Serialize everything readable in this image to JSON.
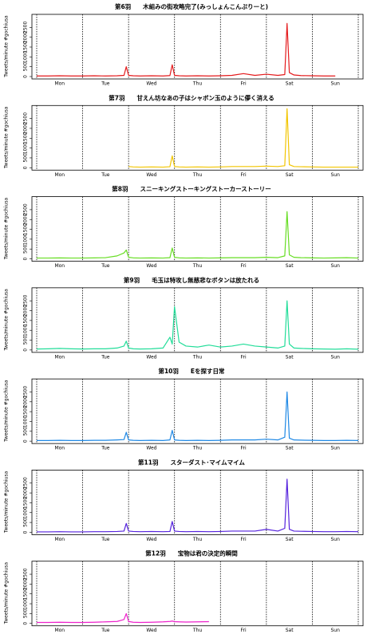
{
  "chart_data": [
    {
      "type": "line",
      "title": "第6羽　　木組みの街攻略完了(みっしょんこんぷりーと)",
      "y_label": "Tweets/minute #gochiusa",
      "categories": [
        "Mon",
        "Tue",
        "Wed",
        "Thu",
        "Fri",
        "Sat",
        "Sun"
      ],
      "xlim": [
        0,
        7
      ],
      "ylim": [
        0,
        3000
      ],
      "yticks": [
        0,
        500,
        1000,
        1500,
        2000,
        2500
      ],
      "series": [
        {
          "color": "#e41a1c",
          "x": [
            0,
            0.25,
            0.5,
            0.75,
            1,
            1.25,
            1.5,
            1.75,
            1.9,
            1.95,
            2,
            2.1,
            2.25,
            2.5,
            2.75,
            2.9,
            2.95,
            3,
            3.1,
            3.25,
            3.5,
            3.75,
            4,
            4.25,
            4.5,
            4.75,
            5,
            5.25,
            5.4,
            5.45,
            5.5,
            5.6,
            5.75,
            6,
            6.25,
            6.5,
            6.75,
            7
          ],
          "values": [
            30,
            30,
            40,
            30,
            30,
            40,
            30,
            40,
            60,
            500,
            60,
            40,
            30,
            40,
            30,
            50,
            600,
            60,
            40,
            30,
            40,
            30,
            40,
            60,
            150,
            60,
            120,
            60,
            100,
            2700,
            200,
            80,
            50,
            40,
            30,
            30,
            null,
            null
          ]
        }
      ]
    },
    {
      "type": "line",
      "title": "第7羽　　甘えん坊なあの子はシャボン玉のように儚く消える",
      "y_label": "Tweets/minute #gochiusa",
      "categories": [
        "Mon",
        "Tue",
        "Wed",
        "Thu",
        "Fri",
        "Sat",
        "Sun"
      ],
      "xlim": [
        0,
        7
      ],
      "ylim": [
        0,
        3000
      ],
      "yticks": [
        0,
        500,
        1000,
        1500,
        2000,
        2500
      ],
      "series": [
        {
          "color": "#f2c500",
          "x": [
            0,
            0.25,
            0.5,
            0.75,
            1,
            1.25,
            1.5,
            1.75,
            1.9,
            1.95,
            2,
            2.1,
            2.25,
            2.5,
            2.75,
            2.9,
            2.95,
            3,
            3.1,
            3.25,
            3.5,
            3.75,
            4,
            4.25,
            4.5,
            4.75,
            5,
            5.25,
            5.4,
            5.45,
            5.5,
            5.6,
            5.75,
            6,
            6.25,
            6.5,
            6.75,
            7
          ],
          "values": [
            null,
            null,
            null,
            null,
            null,
            null,
            null,
            null,
            null,
            null,
            60,
            40,
            30,
            40,
            30,
            50,
            600,
            60,
            40,
            30,
            40,
            30,
            40,
            60,
            60,
            60,
            80,
            60,
            100,
            3000,
            150,
            60,
            50,
            40,
            30,
            30,
            30,
            30
          ]
        }
      ]
    },
    {
      "type": "line",
      "title": "第8羽　　スニーキングストーキングストーカーストーリー",
      "y_label": "Tweets/minute #gochiusa",
      "categories": [
        "Mon",
        "Tue",
        "Wed",
        "Thu",
        "Fri",
        "Sat",
        "Sun"
      ],
      "xlim": [
        0,
        7
      ],
      "ylim": [
        0,
        3000
      ],
      "yticks": [
        0,
        500,
        1000,
        1500,
        2000,
        2500
      ],
      "series": [
        {
          "color": "#66dd22",
          "x": [
            0,
            0.25,
            0.5,
            0.75,
            1,
            1.25,
            1.5,
            1.75,
            1.9,
            1.95,
            2,
            2.1,
            2.25,
            2.5,
            2.75,
            2.9,
            2.95,
            3,
            3.1,
            3.25,
            3.5,
            3.75,
            4,
            4.25,
            4.5,
            4.75,
            5,
            5.25,
            5.4,
            5.45,
            5.5,
            5.6,
            5.75,
            6,
            6.25,
            6.5,
            6.75,
            7
          ],
          "values": [
            40,
            40,
            50,
            40,
            40,
            50,
            60,
            150,
            300,
            450,
            80,
            50,
            40,
            50,
            40,
            60,
            550,
            80,
            50,
            40,
            50,
            40,
            50,
            60,
            60,
            60,
            80,
            60,
            150,
            2400,
            200,
            80,
            60,
            50,
            40,
            50,
            60,
            40
          ]
        }
      ]
    },
    {
      "type": "line",
      "title": "第9羽　　毛玉は特攻し無慈悲なボタンは放たれる",
      "y_label": "Tweets/minute #gochiusa",
      "categories": [
        "Mon",
        "Tue",
        "Wed",
        "Thu",
        "Fri",
        "Sat",
        "Sun"
      ],
      "xlim": [
        0,
        7
      ],
      "ylim": [
        0,
        3000
      ],
      "yticks": [
        0,
        500,
        1000,
        1500,
        2000,
        2500
      ],
      "series": [
        {
          "color": "#22dd99",
          "x": [
            0,
            0.25,
            0.5,
            0.75,
            1,
            1.25,
            1.5,
            1.75,
            1.9,
            1.95,
            2,
            2.1,
            2.25,
            2.5,
            2.75,
            2.9,
            2.95,
            3,
            3.1,
            3.25,
            3.5,
            3.75,
            4,
            4.25,
            4.5,
            4.75,
            5,
            5.25,
            5.4,
            5.45,
            5.5,
            5.6,
            5.75,
            6,
            6.25,
            6.5,
            6.75,
            7
          ],
          "values": [
            50,
            60,
            80,
            60,
            50,
            60,
            60,
            100,
            200,
            450,
            100,
            60,
            50,
            60,
            100,
            650,
            300,
            2200,
            400,
            200,
            150,
            250,
            150,
            200,
            300,
            200,
            150,
            100,
            200,
            2500,
            300,
            100,
            80,
            60,
            50,
            40,
            60,
            40
          ]
        }
      ]
    },
    {
      "type": "line",
      "title": "第10羽　　Eを探す日常",
      "y_label": "Tweets/minute #gochiusa",
      "categories": [
        "Mon",
        "Tue",
        "Wed",
        "Thu",
        "Fri",
        "Sat",
        "Sun"
      ],
      "xlim": [
        0,
        7
      ],
      "ylim": [
        0,
        3000
      ],
      "yticks": [
        0,
        500,
        1000,
        1500,
        2000,
        2500
      ],
      "series": [
        {
          "color": "#1e88e5",
          "x": [
            0,
            0.25,
            0.5,
            0.75,
            1,
            1.25,
            1.5,
            1.75,
            1.9,
            1.95,
            2,
            2.1,
            2.25,
            2.5,
            2.75,
            2.9,
            2.95,
            3,
            3.1,
            3.25,
            3.5,
            3.75,
            4,
            4.25,
            4.5,
            4.75,
            5,
            5.25,
            5.4,
            5.45,
            5.5,
            5.6,
            5.75,
            6,
            6.25,
            6.5,
            6.75,
            7
          ],
          "values": [
            30,
            30,
            40,
            30,
            30,
            40,
            40,
            60,
            80,
            450,
            60,
            40,
            30,
            40,
            30,
            60,
            550,
            60,
            40,
            30,
            40,
            30,
            40,
            60,
            60,
            60,
            100,
            60,
            200,
            2500,
            150,
            60,
            50,
            40,
            30,
            30,
            40,
            30
          ]
        }
      ]
    },
    {
      "type": "line",
      "title": "第11羽　　スターダスト･マイムマイム",
      "y_label": "Tweets/minute #gochiusa",
      "categories": [
        "Mon",
        "Tue",
        "Wed",
        "Thu",
        "Fri",
        "Sat",
        "Sun"
      ],
      "xlim": [
        0,
        7
      ],
      "ylim": [
        0,
        3000
      ],
      "yticks": [
        0,
        500,
        1000,
        1500,
        2000,
        2500
      ],
      "series": [
        {
          "color": "#5522dd",
          "x": [
            0,
            0.25,
            0.5,
            0.75,
            1,
            1.25,
            1.5,
            1.75,
            1.9,
            1.95,
            2,
            2.1,
            2.25,
            2.5,
            2.75,
            2.9,
            2.95,
            3,
            3.1,
            3.25,
            3.5,
            3.75,
            4,
            4.25,
            4.5,
            4.75,
            5,
            5.25,
            5.4,
            5.45,
            5.5,
            5.6,
            5.75,
            6,
            6.25,
            6.5,
            6.75,
            7
          ],
          "values": [
            20,
            20,
            30,
            20,
            20,
            30,
            30,
            40,
            60,
            450,
            60,
            40,
            30,
            40,
            30,
            40,
            550,
            60,
            40,
            30,
            40,
            30,
            40,
            60,
            60,
            60,
            150,
            60,
            200,
            2700,
            150,
            60,
            50,
            40,
            30,
            30,
            40,
            30
          ]
        }
      ]
    },
    {
      "type": "line",
      "title": "第12羽　　宝物は君の決定的瞬間",
      "y_label": "Tweets/minute #gochiusa",
      "categories": [
        "Mon",
        "Tue",
        "Wed",
        "Thu",
        "Fri",
        "Sat",
        "Sun"
      ],
      "xlim": [
        0,
        7
      ],
      "ylim": [
        0,
        3000
      ],
      "yticks": [
        0,
        500,
        1000,
        1500,
        2000,
        2500
      ],
      "series": [
        {
          "color": "#ee22cc",
          "x": [
            0,
            0.25,
            0.5,
            0.75,
            1,
            1.25,
            1.5,
            1.75,
            1.9,
            1.95,
            2,
            2.1,
            2.25,
            2.5,
            2.75,
            2.9,
            2.95,
            3,
            3.1,
            3.25,
            3.5,
            3.75,
            4,
            4.25,
            4.5,
            4.75,
            5,
            5.25,
            5.4,
            5.45,
            5.5,
            5.6,
            5.75,
            6,
            6.25,
            6.5,
            6.75,
            7
          ],
          "values": [
            50,
            50,
            60,
            50,
            50,
            60,
            80,
            100,
            200,
            500,
            100,
            60,
            50,
            60,
            80,
            100,
            120,
            90,
            80,
            70,
            80,
            90,
            null,
            null,
            null,
            null,
            null,
            null,
            null,
            null,
            null,
            null,
            null,
            null,
            null,
            null,
            null,
            null
          ]
        }
      ]
    }
  ]
}
